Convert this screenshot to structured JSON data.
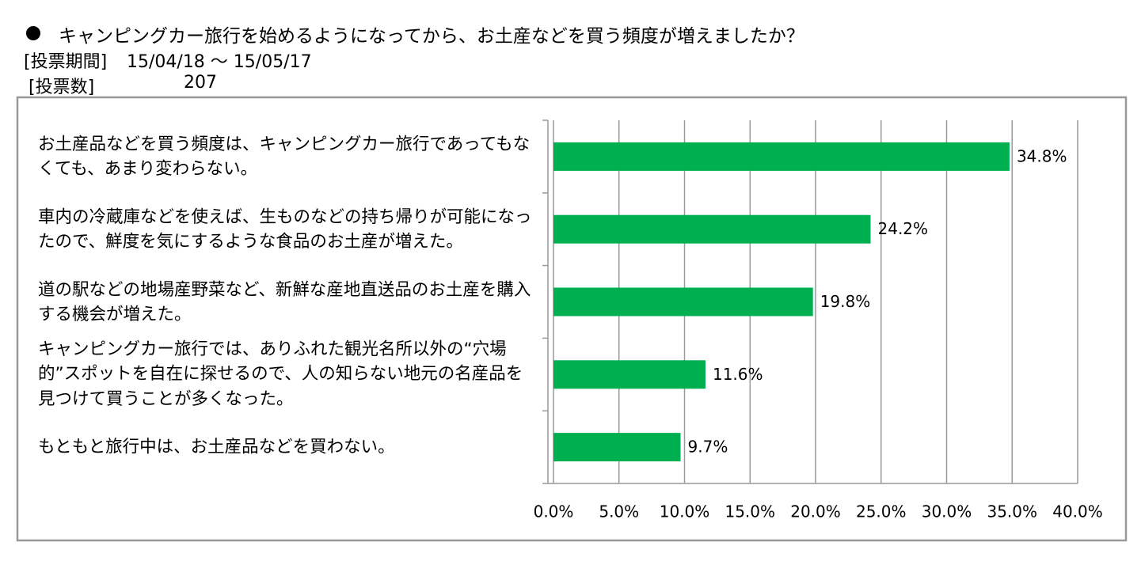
{
  "chart_data": {
    "type": "hbar",
    "title": "キャンピングカー旅行を始めるようになってから、お土産などを買う頻度が増えましたか？",
    "period_label": "[投票期間]",
    "period": "15/04/18 ～ 15/05/17",
    "votes_label": "[投票数]",
    "votes": 207,
    "categories": [
      "お土産品などを買う頻度は、キャンピングカー旅行であってもなくても、あまり変わらない。",
      "車内の冷蔵庫などを使えば、生ものなどの持ち帰りが可能になったので、鮮度を気にするような食品のお土産が増えた。",
      "道の駅などの地場産野菜など、新鮮な産地直送品のお土産を購入する機会が増えた。",
      "キャンピングカー旅行では、ありふれた観光名所以外の“穴場的”スポットを自在に探せるので、人の知らない地元の名産品を見つけて買うことが多くなった。",
      "もともと旅行中は、お土産品などを買わない。"
    ],
    "values": [
      34.8,
      24.2,
      19.8,
      11.6,
      9.7
    ],
    "value_labels": [
      "34.8%",
      "24.2%",
      "19.8%",
      "11.6%",
      "9.7%"
    ],
    "color": "#00b050",
    "xlim": [
      0,
      40
    ],
    "xticks": [
      {
        "value": 0,
        "label": "0.0%"
      },
      {
        "value": 5,
        "label": "5.0%"
      },
      {
        "value": 10,
        "label": "10.0%"
      },
      {
        "value": 15,
        "label": "15.0%"
      },
      {
        "value": 20,
        "label": "20.0%"
      },
      {
        "value": 25,
        "label": "25.0%"
      },
      {
        "value": 30,
        "label": "30.0%"
      },
      {
        "value": 35,
        "label": "35.0%"
      },
      {
        "value": 40,
        "label": "40.0%"
      }
    ],
    "grid": true
  }
}
